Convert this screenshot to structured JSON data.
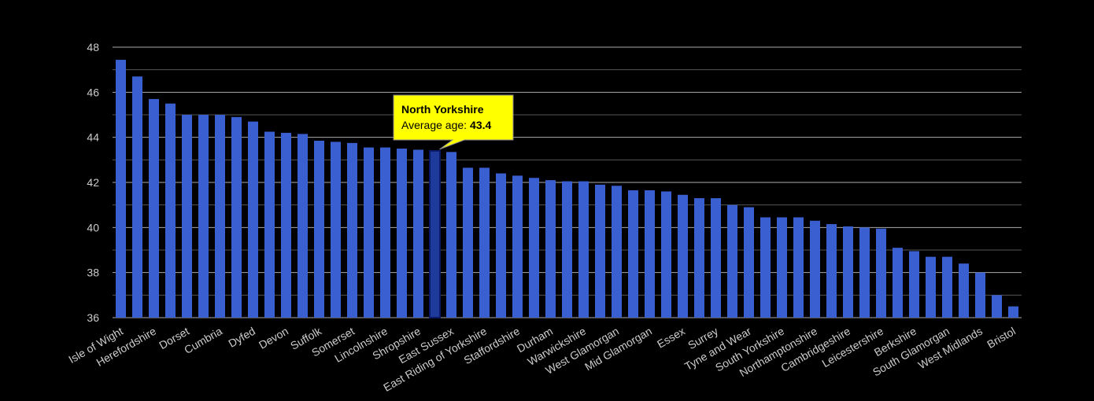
{
  "chart_data": {
    "type": "bar",
    "categories": [
      "Isle of Wight",
      null,
      "Herefordshire",
      null,
      "Dorset",
      null,
      "Cumbria",
      null,
      "Dyfed",
      null,
      "Devon",
      null,
      "Suffolk",
      null,
      "Somerset",
      null,
      "Lincolnshire",
      null,
      "Shropshire",
      null,
      "East Sussex",
      null,
      "East Riding of Yorkshire",
      null,
      "Staffordshire",
      null,
      "Durham",
      null,
      "Warwickshire",
      null,
      "West Glamorgan",
      null,
      "Mid Glamorgan",
      null,
      "Essex",
      null,
      "Surrey",
      null,
      "Tyne and Wear",
      null,
      "South Yorkshire",
      null,
      "Northamptonshire",
      null,
      "Cambridgeshire",
      null,
      "Leicestershire",
      null,
      "Berkshire",
      null,
      "South Glamorgan",
      null,
      "West Midlands",
      null,
      "Bristol"
    ],
    "values": [
      47.44,
      46.7,
      45.7,
      45.5,
      45.0,
      45.0,
      45.0,
      44.9,
      44.7,
      44.25,
      44.2,
      44.15,
      43.85,
      43.8,
      43.75,
      43.55,
      43.55,
      43.5,
      43.45,
      43.4,
      43.35,
      42.65,
      42.65,
      42.4,
      42.3,
      42.2,
      42.1,
      42.05,
      42.05,
      41.9,
      41.85,
      41.65,
      41.65,
      41.6,
      41.45,
      41.3,
      41.3,
      41.0,
      40.9,
      40.45,
      40.45,
      40.45,
      40.3,
      40.15,
      40.05,
      40.0,
      39.95,
      39.1,
      38.95,
      38.7,
      38.7,
      38.4,
      38.0,
      37.0,
      36.5
    ],
    "color": "#3a5fd0",
    "ylim": [
      36,
      48
    ],
    "yticks": [
      36,
      38,
      40,
      42,
      44,
      46,
      48
    ],
    "minor_yticks": [
      37,
      39,
      41,
      43,
      45,
      47
    ],
    "grid": true,
    "tooltip": {
      "category": "North Yorkshire",
      "label": "Average age:",
      "value": 43.4
    }
  }
}
